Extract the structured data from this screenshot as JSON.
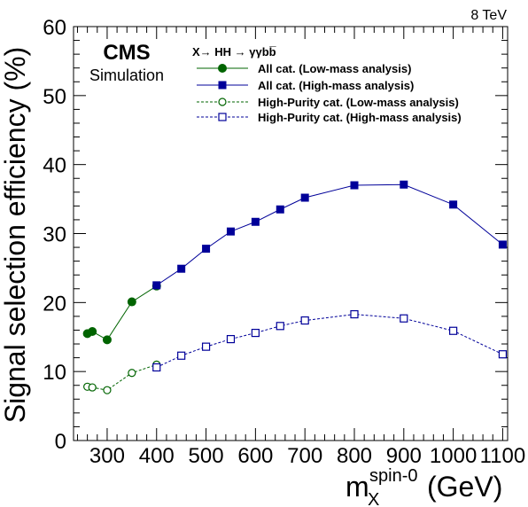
{
  "chart_data": {
    "type": "line",
    "title": "",
    "energy_label": "8 TeV",
    "experiment_label": "CMS",
    "experiment_sublabel": "Simulation",
    "legend_header": "X→ HH → γγbb̅",
    "xlabel": "m",
    "xlabel_sub": "X",
    "xlabel_sup": "spin-0",
    "xlabel_unit": "(GeV)",
    "ylabel": "Signal selection efficiency (%)",
    "xlim": [
      232,
      1110
    ],
    "ylim": [
      0,
      60
    ],
    "xticks": [
      300,
      400,
      500,
      600,
      700,
      800,
      900,
      1000,
      1100
    ],
    "xtick_labels": [
      "300",
      "400",
      "500",
      "600",
      "700",
      "800",
      "900",
      "1000",
      "1100"
    ],
    "yticks": [
      0,
      10,
      20,
      30,
      40,
      50,
      60
    ],
    "ytick_labels": [
      "0",
      "10",
      "20",
      "30",
      "40",
      "50",
      "60"
    ],
    "grid": false,
    "legend_position": "top-right",
    "series": [
      {
        "name": "All cat. (Low-mass analysis)",
        "color": "#006400",
        "line": "solid",
        "marker": "filled-circle",
        "x": [
          260,
          270,
          300,
          350,
          400
        ],
        "y": [
          15.5,
          15.8,
          14.6,
          20.1,
          22.4
        ]
      },
      {
        "name": "All cat. (High-mass analysis)",
        "color": "#000099",
        "line": "solid",
        "marker": "filled-square",
        "x": [
          400,
          450,
          500,
          550,
          600,
          650,
          700,
          800,
          900,
          1000,
          1100
        ],
        "y": [
          22.5,
          24.9,
          27.8,
          30.3,
          31.7,
          33.5,
          35.2,
          37.0,
          37.1,
          34.2,
          28.4
        ]
      },
      {
        "name": "High-Purity cat. (Low-mass analysis)",
        "color": "#006400",
        "line": "dashed",
        "marker": "open-circle",
        "x": [
          260,
          270,
          300,
          350,
          400
        ],
        "y": [
          7.8,
          7.7,
          7.3,
          9.8,
          11.0
        ]
      },
      {
        "name": "High-Purity cat. (High-mass analysis)",
        "color": "#000099",
        "line": "dashed",
        "marker": "open-square",
        "x": [
          400,
          450,
          500,
          550,
          600,
          650,
          700,
          800,
          900,
          1000,
          1100
        ],
        "y": [
          10.6,
          12.3,
          13.6,
          14.7,
          15.6,
          16.6,
          17.4,
          18.3,
          17.7,
          15.9,
          12.5
        ]
      }
    ]
  }
}
